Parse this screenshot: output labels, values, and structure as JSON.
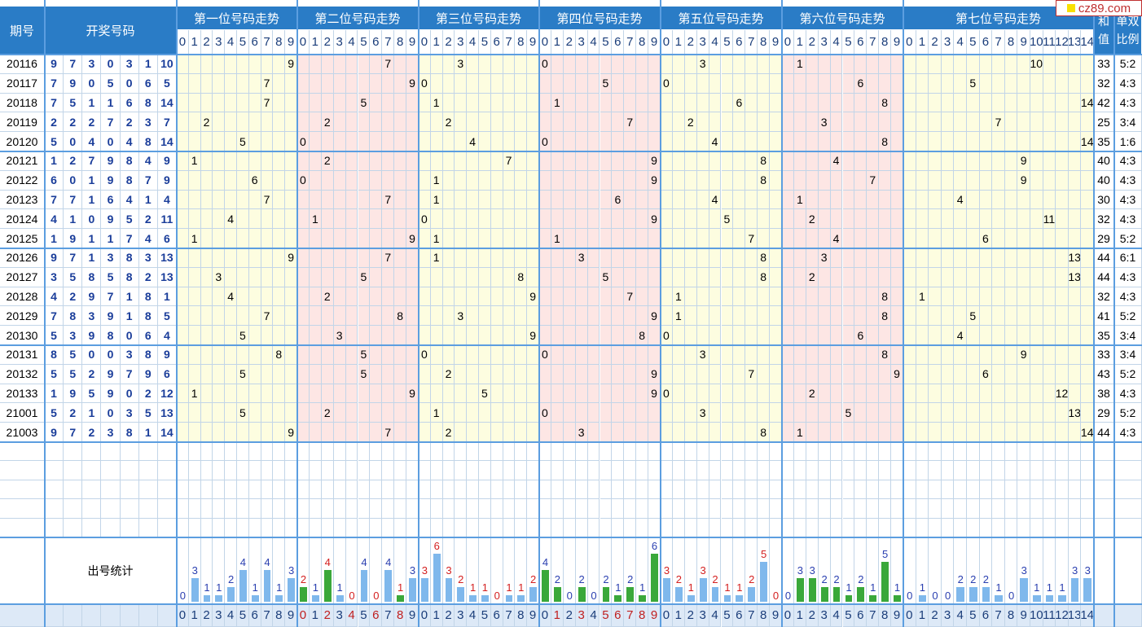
{
  "header": {
    "issue_label": "期号",
    "draw_label": "开奖号码",
    "group_titles": [
      "第一位号码走势",
      "第二位号码走势",
      "第三位号码走势",
      "第四位号码走势",
      "第五位号码走势",
      "第六位号码走势",
      "第七位号码走势"
    ],
    "sum_label": "和值",
    "ratio_label": "单双比例"
  },
  "stats_label": "出号统计",
  "watermark": "cz89.com",
  "colors": {
    "header_bg": "#2a7cc6",
    "zone_yellow": "#fdfde0",
    "zone_pink": "#fde6e4",
    "draw_text": "#1a3d9a",
    "bar_blue": "#7fb8ec",
    "bar_green": "#3aa83a",
    "num_blue": "#2a3fb0",
    "num_red": "#d42020"
  },
  "chart_data": {
    "type": "table",
    "positions": 7,
    "digit_ranges": [
      [
        0,
        9
      ],
      [
        0,
        9
      ],
      [
        0,
        9
      ],
      [
        0,
        9
      ],
      [
        0,
        9
      ],
      [
        0,
        9
      ],
      [
        0,
        14
      ]
    ],
    "rows": [
      {
        "issue": "20116",
        "numbers": [
          9,
          7,
          3,
          0,
          3,
          1,
          10
        ],
        "sum": 33,
        "ratio": "5:2"
      },
      {
        "issue": "20117",
        "numbers": [
          7,
          9,
          0,
          5,
          0,
          6,
          5
        ],
        "sum": 32,
        "ratio": "4:3"
      },
      {
        "issue": "20118",
        "numbers": [
          7,
          5,
          1,
          1,
          6,
          8,
          14
        ],
        "sum": 42,
        "ratio": "4:3"
      },
      {
        "issue": "20119",
        "numbers": [
          2,
          2,
          2,
          7,
          2,
          3,
          7
        ],
        "sum": 25,
        "ratio": "3:4"
      },
      {
        "issue": "20120",
        "numbers": [
          5,
          0,
          4,
          0,
          4,
          8,
          14
        ],
        "sum": 35,
        "ratio": "1:6"
      },
      {
        "issue": "20121",
        "numbers": [
          1,
          2,
          7,
          9,
          8,
          4,
          9
        ],
        "sum": 40,
        "ratio": "4:3"
      },
      {
        "issue": "20122",
        "numbers": [
          6,
          0,
          1,
          9,
          8,
          7,
          9
        ],
        "sum": 40,
        "ratio": "4:3"
      },
      {
        "issue": "20123",
        "numbers": [
          7,
          7,
          1,
          6,
          4,
          1,
          4
        ],
        "sum": 30,
        "ratio": "4:3"
      },
      {
        "issue": "20124",
        "numbers": [
          4,
          1,
          0,
          9,
          5,
          2,
          11
        ],
        "sum": 32,
        "ratio": "4:3"
      },
      {
        "issue": "20125",
        "numbers": [
          1,
          9,
          1,
          1,
          7,
          4,
          6
        ],
        "sum": 29,
        "ratio": "5:2"
      },
      {
        "issue": "20126",
        "numbers": [
          9,
          7,
          1,
          3,
          8,
          3,
          13
        ],
        "sum": 44,
        "ratio": "6:1"
      },
      {
        "issue": "20127",
        "numbers": [
          3,
          5,
          8,
          5,
          8,
          2,
          13
        ],
        "sum": 44,
        "ratio": "4:3"
      },
      {
        "issue": "20128",
        "numbers": [
          4,
          2,
          9,
          7,
          1,
          8,
          1
        ],
        "sum": 32,
        "ratio": "4:3"
      },
      {
        "issue": "20129",
        "numbers": [
          7,
          8,
          3,
          9,
          1,
          8,
          5
        ],
        "sum": 41,
        "ratio": "5:2"
      },
      {
        "issue": "20130",
        "numbers": [
          5,
          3,
          9,
          8,
          0,
          6,
          4
        ],
        "sum": 35,
        "ratio": "3:4"
      },
      {
        "issue": "20131",
        "numbers": [
          8,
          5,
          0,
          0,
          3,
          8,
          9
        ],
        "sum": 33,
        "ratio": "3:4"
      },
      {
        "issue": "20132",
        "numbers": [
          5,
          5,
          2,
          9,
          7,
          9,
          6
        ],
        "sum": 43,
        "ratio": "5:2"
      },
      {
        "issue": "20133",
        "numbers": [
          1,
          9,
          5,
          9,
          0,
          2,
          12
        ],
        "sum": 38,
        "ratio": "4:3"
      },
      {
        "issue": "21001",
        "numbers": [
          5,
          2,
          1,
          0,
          3,
          5,
          13
        ],
        "sum": 29,
        "ratio": "5:2"
      },
      {
        "issue": "21003",
        "numbers": [
          9,
          7,
          2,
          3,
          8,
          1,
          14
        ],
        "sum": 44,
        "ratio": "4:3"
      }
    ],
    "frequency": [
      [
        0,
        3,
        1,
        1,
        2,
        4,
        1,
        4,
        1,
        3
      ],
      [
        2,
        1,
        4,
        1,
        0,
        4,
        0,
        4,
        1,
        3
      ],
      [
        3,
        6,
        3,
        2,
        1,
        1,
        0,
        1,
        1,
        2
      ],
      [
        4,
        2,
        0,
        2,
        0,
        2,
        1,
        2,
        1,
        6
      ],
      [
        3,
        2,
        1,
        3,
        2,
        1,
        1,
        2,
        5,
        0
      ],
      [
        0,
        3,
        3,
        2,
        2,
        1,
        2,
        1,
        5,
        1
      ],
      [
        0,
        1,
        0,
        0,
        2,
        2,
        2,
        1,
        0,
        3,
        1,
        1,
        1,
        3,
        3
      ]
    ]
  }
}
